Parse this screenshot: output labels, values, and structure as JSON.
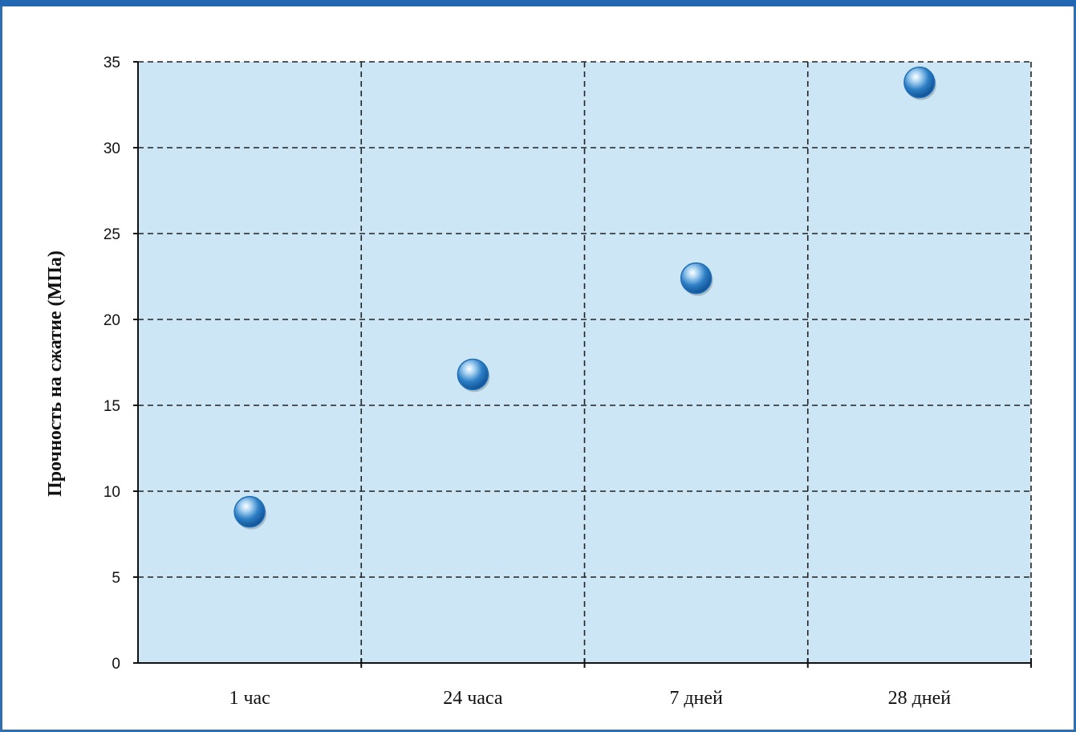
{
  "chart_data": {
    "type": "scatter",
    "title": "",
    "xlabel": "",
    "ylabel": "Прочность на сжатие (МПа)",
    "categories": [
      "1 час",
      "24 часа",
      "7 дней",
      "28 дней"
    ],
    "values": [
      8.8,
      16.8,
      22.4,
      33.8
    ],
    "ylim": [
      0,
      35
    ],
    "yticks": [
      0,
      5,
      10,
      15,
      20,
      25,
      30,
      35
    ],
    "grid": true,
    "colors": {
      "plot_background": "#cce6f6",
      "marker": "#1f6fb6",
      "grid": "#222222",
      "frame": "#2f6fb0"
    }
  }
}
